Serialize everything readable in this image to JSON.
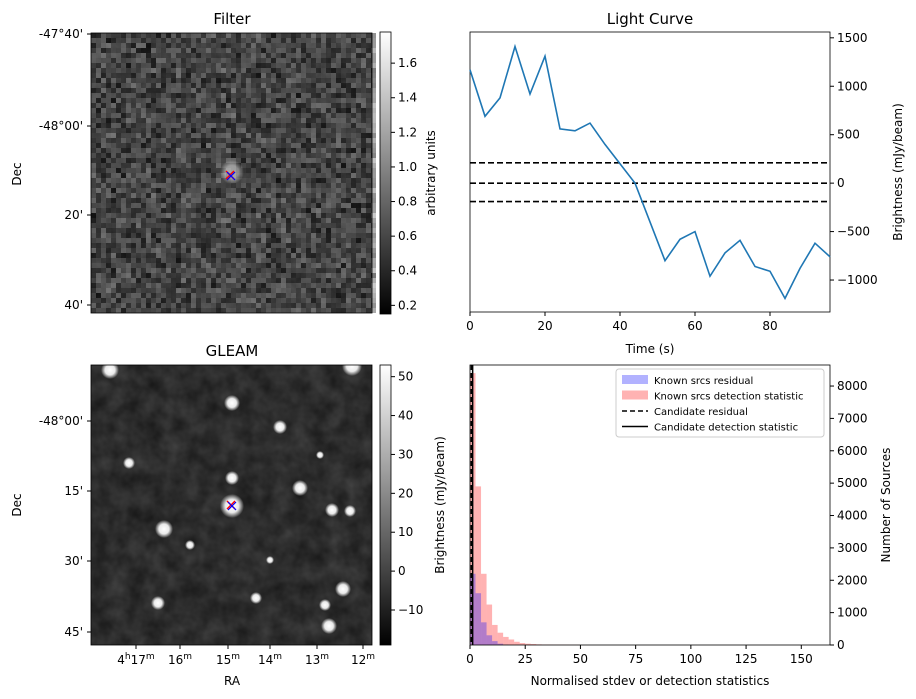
{
  "chart_data": [
    {
      "type": "heatmap",
      "title": "Filter",
      "ylabel": "Dec",
      "y_ticks": [
        "-47°40'",
        "-48°00'",
        "20'",
        "40'"
      ],
      "colorbar": {
        "label": "arbitrary units",
        "range": [
          0.15,
          1.78
        ],
        "ticks": [
          "0.2",
          "0.4",
          "0.6",
          "0.8",
          "1.0",
          "1.2",
          "1.4",
          "1.6"
        ],
        "colormap": "gray"
      },
      "markers": [
        {
          "symbol": "x",
          "colors": [
            "#ff0000",
            "#0000ff"
          ]
        }
      ]
    },
    {
      "type": "line",
      "title": "Light Curve",
      "xlabel": "Time (s)",
      "ylabel": "Brightness (mJy/beam)",
      "xlim": [
        0,
        96
      ],
      "ylim": [
        -1330,
        1560
      ],
      "x_ticks": [
        "0",
        "20",
        "40",
        "60",
        "80"
      ],
      "y_ticks": [
        "1500",
        "1000",
        "500",
        "0",
        "-500",
        "-1000"
      ],
      "series": [
        {
          "color": "#1f77b4",
          "x": [
            0,
            4,
            8,
            12,
            16,
            20,
            24,
            28,
            32,
            36,
            40,
            44,
            48,
            52,
            56,
            60,
            64,
            68,
            72,
            76,
            80,
            84,
            88,
            92,
            96
          ],
          "y": [
            1170,
            690,
            880,
            1410,
            920,
            1310,
            560,
            540,
            620,
            400,
            200,
            0,
            -400,
            -800,
            -580,
            -500,
            -960,
            -720,
            -590,
            -860,
            -910,
            -1190,
            -880,
            -620,
            -760
          ]
        }
      ],
      "hlines": [
        {
          "y": 210,
          "style": "dashed",
          "color": "#000000"
        },
        {
          "y": 0,
          "style": "dashed",
          "color": "#000000"
        },
        {
          "y": -190,
          "style": "dashed",
          "color": "#000000"
        }
      ]
    },
    {
      "type": "heatmap",
      "title": "GLEAM",
      "xlabel": "RA",
      "ylabel": "Dec",
      "x_ticks": [
        "4h17m",
        "16m",
        "15m",
        "14m",
        "13m",
        "12m"
      ],
      "y_ticks": [
        "-48°00'",
        "15'",
        "30'",
        "45'"
      ],
      "colorbar": {
        "label": "Brightness (mJy/beam)",
        "range": [
          -19,
          53
        ],
        "ticks": [
          "−10",
          "0",
          "10",
          "20",
          "30",
          "40",
          "50"
        ],
        "colormap": "gray"
      },
      "markers": [
        {
          "symbol": "x",
          "colors": [
            "#ff0000",
            "#0000ff"
          ]
        }
      ]
    },
    {
      "type": "bar",
      "xlabel": "Normalised stdev or detection statistics",
      "ylabel": "Number of Sources",
      "xlim": [
        0,
        163
      ],
      "ylim": [
        0,
        8650
      ],
      "x_ticks": [
        "0",
        "25",
        "50",
        "75",
        "100",
        "125",
        "150"
      ],
      "y_ticks": [
        "0",
        "1000",
        "2000",
        "3000",
        "4000",
        "5000",
        "6000",
        "7000",
        "8000"
      ],
      "bin_width": 2.5,
      "legend_position": "top-right",
      "series": [
        {
          "name": "Known srcs residual",
          "color": "#0000ff",
          "alpha": 0.3,
          "values": [
            2200,
            1600,
            700,
            300,
            120,
            40,
            10
          ]
        },
        {
          "name": "Known srcs detection statistic",
          "color": "#ff0000",
          "alpha": 0.3,
          "values": [
            8400,
            4900,
            2200,
            1250,
            620,
            380,
            250,
            170,
            100,
            60,
            40,
            30,
            20,
            15,
            15,
            10,
            10,
            8,
            6,
            5
          ]
        }
      ],
      "lines": [
        {
          "name": "Candidate residual",
          "x": 0.6,
          "style": "dashed",
          "color": "#000000"
        },
        {
          "name": "Candidate detection statistic",
          "x": 1.2,
          "style": "solid",
          "color": "#000000"
        }
      ]
    }
  ]
}
